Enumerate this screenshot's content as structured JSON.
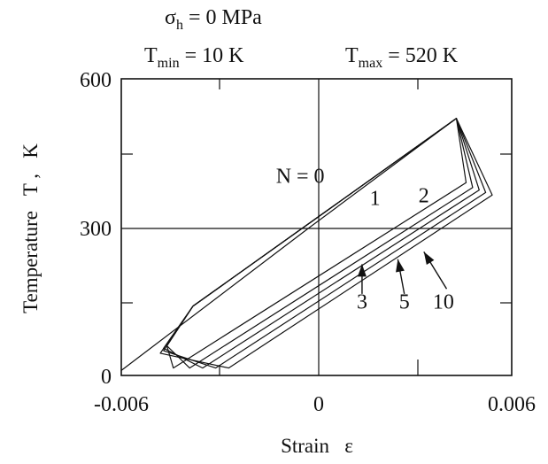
{
  "header": {
    "line1_sym": "σ",
    "line1_sub": "h",
    "line1_rest": " = 0 MPa",
    "tmin_sym": "T",
    "tmin_sub": "min",
    "tmin_rest": " = 10 K",
    "tmax_sym": "T",
    "tmax_sub": "max",
    "tmax_rest": " = 520 K"
  },
  "chart_data": {
    "type": "line",
    "xlabel": "Strain   ε",
    "ylabel": "Temperature   T ,   K",
    "xlim": [
      -0.006,
      0.006
    ],
    "ylim": [
      0,
      600
    ],
    "x_ticks": [
      "-0.006",
      "0",
      "0.006"
    ],
    "y_ticks": [
      "0",
      "300",
      "600"
    ],
    "grid": "zero lines",
    "series": [
      {
        "name": "N = 0",
        "points": [
          [
            -0.006,
            10
          ],
          [
            -0.0002,
            300
          ],
          [
            0.0043,
            520
          ]
        ]
      },
      {
        "name": "1",
        "points": [
          [
            -0.0038,
            140
          ],
          [
            0.0043,
            520
          ],
          [
            0.0046,
            390
          ],
          [
            -0.0044,
            15
          ],
          [
            -0.0046,
            60
          ],
          [
            -0.0038,
            140
          ]
        ]
      },
      {
        "name": "2",
        "points": [
          [
            -0.0038,
            140
          ],
          [
            0.0043,
            520
          ],
          [
            0.0048,
            380
          ],
          [
            -0.0039,
            15
          ],
          [
            -0.0046,
            60
          ],
          [
            -0.0038,
            140
          ]
        ]
      },
      {
        "name": "3",
        "points": [
          [
            -0.0038,
            140
          ],
          [
            0.0043,
            520
          ],
          [
            0.005,
            375
          ],
          [
            -0.0035,
            15
          ],
          [
            -0.0047,
            55
          ],
          [
            -0.0038,
            140
          ]
        ]
      },
      {
        "name": "5",
        "points": [
          [
            -0.0038,
            140
          ],
          [
            0.0043,
            520
          ],
          [
            0.0052,
            370
          ],
          [
            -0.0031,
            15
          ],
          [
            -0.0047,
            50
          ],
          [
            -0.0038,
            140
          ]
        ]
      },
      {
        "name": "10",
        "points": [
          [
            -0.0038,
            140
          ],
          [
            0.0043,
            520
          ],
          [
            0.0054,
            365
          ],
          [
            -0.0027,
            15
          ],
          [
            -0.0048,
            45
          ],
          [
            -0.0038,
            140
          ]
        ]
      }
    ],
    "curve_labels": [
      {
        "text": "N = 0",
        "x": -0.0005,
        "y": 390
      },
      {
        "text": "1",
        "x": 0.0018,
        "y": 345
      },
      {
        "text": "2",
        "x": 0.0033,
        "y": 350
      },
      {
        "text": "3",
        "x": 0.0014,
        "y": 135
      },
      {
        "text": "5",
        "x": 0.0027,
        "y": 135
      },
      {
        "text": "10",
        "x": 0.0039,
        "y": 135
      }
    ],
    "arrows": [
      {
        "from": [
          0.0014,
          165
        ],
        "to": [
          0.0014,
          225
        ]
      },
      {
        "from": [
          0.0027,
          165
        ],
        "to": [
          0.0025,
          235
        ]
      },
      {
        "from": [
          0.004,
          175
        ],
        "to": [
          0.0033,
          250
        ]
      }
    ]
  }
}
